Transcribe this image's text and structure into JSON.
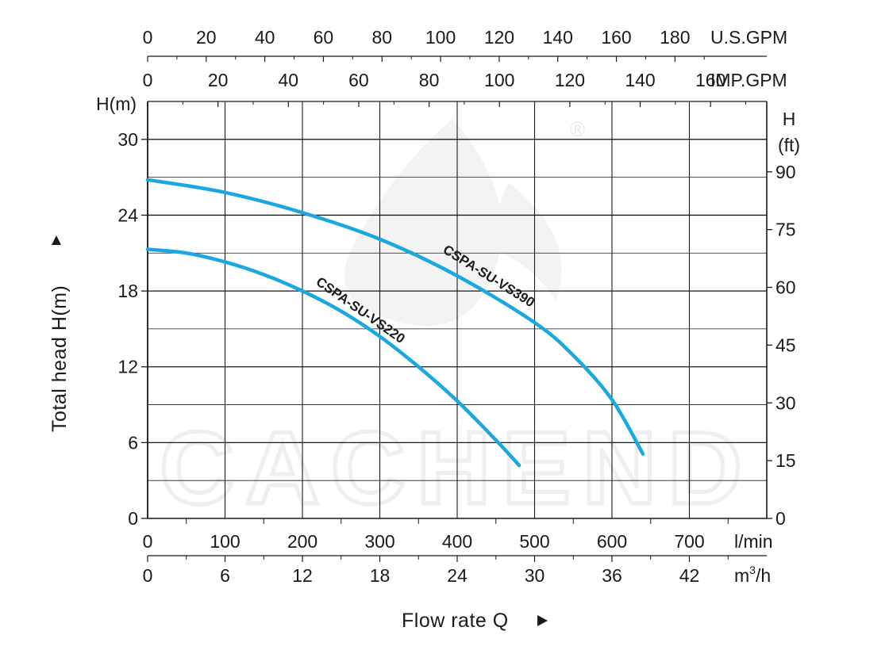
{
  "chart_data": {
    "type": "line",
    "title": "",
    "watermark": {
      "text": "CACHEND",
      "mark": "®",
      "color": "#efefef"
    },
    "axes": {
      "x_lmin": {
        "range": [
          0,
          800
        ],
        "ticks": [
          "0",
          "100",
          "200",
          "300",
          "400",
          "500",
          "600",
          "700"
        ],
        "unit": "l/min"
      },
      "x_m3h": {
        "range": [
          0,
          48
        ],
        "ticks": [
          "0",
          "6",
          "12",
          "18",
          "24",
          "30",
          "36",
          "42"
        ],
        "unit_base": "m",
        "unit_sup": "3",
        "unit_tail": "/h"
      },
      "x_usgpm": {
        "ticks": [
          "0",
          "20",
          "40",
          "60",
          "80",
          "100",
          "120",
          "140",
          "160",
          "180"
        ],
        "unit": "U.S.GPM"
      },
      "x_impgpm": {
        "ticks": [
          "0",
          "20",
          "40",
          "60",
          "80",
          "100",
          "120",
          "140",
          "160"
        ],
        "unit": "IMP.GPM"
      },
      "y_m": {
        "range": [
          0,
          33
        ],
        "ticks": [
          "0",
          "6",
          "12",
          "18",
          "24",
          "30"
        ],
        "unit": "H(m)"
      },
      "y_ft": {
        "ticks": [
          "0",
          "15",
          "30",
          "45",
          "60",
          "75",
          "90"
        ],
        "unit_line1": "H",
        "unit_line2": "(ft)"
      },
      "xlabel": "Flow rate  Q",
      "ylabel": "Total  head H(m)",
      "grid": true
    },
    "series": [
      {
        "name": "CSPA-SU-VS390",
        "color": "#1ba8e0",
        "x": [
          0,
          100,
          200,
          300,
          400,
          500,
          550,
          600,
          640
        ],
        "y": [
          26.8,
          25.8,
          24.2,
          22.1,
          19.2,
          15.5,
          12.9,
          9.4,
          5.1
        ]
      },
      {
        "name": "CSPA-SU-VS220",
        "color": "#1ba8e0",
        "x": [
          0,
          50,
          100,
          150,
          200,
          250,
          300,
          350,
          400,
          450,
          480
        ],
        "y": [
          21.3,
          21.0,
          20.3,
          19.3,
          18.0,
          16.4,
          14.4,
          12.0,
          9.3,
          6.2,
          4.2
        ]
      }
    ],
    "legend": "inline labels along curves"
  }
}
